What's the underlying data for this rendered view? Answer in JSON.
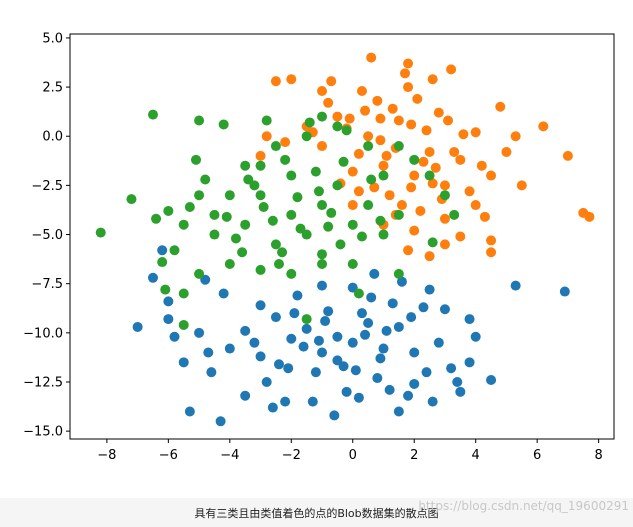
{
  "caption": "具有三类且由类值着色的点的Blob数据集的散点图",
  "watermark": "https://blog.csdn.net/qq_19600291",
  "chart_data": {
    "type": "scatter",
    "title": "",
    "xlabel": "",
    "ylabel": "",
    "xlim": [
      -9.2,
      8.5
    ],
    "ylim": [
      -15.4,
      5.2
    ],
    "xticks": [
      -8,
      -6,
      -4,
      -2,
      0,
      2,
      4,
      6,
      8
    ],
    "yticks": [
      5.0,
      2.5,
      0.0,
      -2.5,
      -5.0,
      -7.5,
      -10.0,
      -12.5,
      -15.0
    ],
    "xtick_labels": [
      "−8",
      "−6",
      "−4",
      "−2",
      "0",
      "2",
      "4",
      "6",
      "8"
    ],
    "ytick_labels": [
      "5.0",
      "2.5",
      "0.0",
      "−2.5",
      "−5.0",
      "−7.5",
      "−10.0",
      "−12.5",
      "−15.0"
    ],
    "grid": false,
    "series": [
      {
        "color": "#1f77b4",
        "points": [
          [
            -1.5,
            -9.8
          ],
          [
            -0.5,
            -10.2
          ],
          [
            0.5,
            -9.5
          ],
          [
            -1.0,
            -11.0
          ],
          [
            0.0,
            -10.5
          ],
          [
            1.0,
            -10.8
          ],
          [
            -2.0,
            -10.3
          ],
          [
            -0.8,
            -8.9
          ],
          [
            0.3,
            -9.0
          ],
          [
            1.5,
            -9.7
          ],
          [
            -2.5,
            -9.2
          ],
          [
            -1.2,
            -12.0
          ],
          [
            0.8,
            -12.3
          ],
          [
            -3.0,
            -11.2
          ],
          [
            2.0,
            -11.0
          ],
          [
            -0.2,
            -13.0
          ],
          [
            1.2,
            -12.9
          ],
          [
            -2.8,
            -12.5
          ],
          [
            2.8,
            -10.5
          ],
          [
            -3.5,
            -9.9
          ],
          [
            3.2,
            -11.8
          ],
          [
            -4.0,
            -10.8
          ],
          [
            0.6,
            -8.2
          ],
          [
            -1.8,
            -8.1
          ],
          [
            2.3,
            -8.7
          ],
          [
            -2.2,
            -13.5
          ],
          [
            1.8,
            -13.2
          ],
          [
            -0.6,
            -14.2
          ],
          [
            3.5,
            -13.0
          ],
          [
            -4.6,
            -12.0
          ],
          [
            4.0,
            -10.2
          ],
          [
            -5.0,
            -10.0
          ],
          [
            -5.5,
            -11.5
          ],
          [
            -6.0,
            -9.3
          ],
          [
            -6.5,
            -7.2
          ],
          [
            -6.2,
            -5.8
          ],
          [
            -4.2,
            -8.0
          ],
          [
            -3.0,
            -8.6
          ],
          [
            -1.0,
            -7.6
          ],
          [
            0.7,
            -7.0
          ],
          [
            1.6,
            -7.4
          ],
          [
            2.5,
            -7.8
          ],
          [
            3.0,
            -8.8
          ],
          [
            3.4,
            -12.5
          ],
          [
            4.5,
            -12.4
          ],
          [
            -7.0,
            -9.7
          ],
          [
            -5.3,
            -14.0
          ],
          [
            -4.3,
            -14.5
          ],
          [
            -3.5,
            -13.2
          ],
          [
            -2.6,
            -13.8
          ],
          [
            -1.3,
            -13.5
          ],
          [
            0.2,
            -13.3
          ],
          [
            1.5,
            -14.0
          ],
          [
            2.6,
            -13.5
          ],
          [
            3.8,
            -11.5
          ],
          [
            5.3,
            -7.6
          ],
          [
            6.9,
            -7.9
          ],
          [
            -0.3,
            -11.7
          ],
          [
            0.9,
            -11.3
          ],
          [
            -1.6,
            -10.7
          ],
          [
            -2.4,
            -11.6
          ],
          [
            1.9,
            -9.2
          ],
          [
            -3.2,
            -10.5
          ],
          [
            2.4,
            -12.0
          ],
          [
            -0.9,
            -9.4
          ],
          [
            0.1,
            -11.9
          ],
          [
            1.3,
            -8.5
          ],
          [
            -1.9,
            -9.0
          ],
          [
            -4.7,
            -11.0
          ],
          [
            3.8,
            -9.3
          ],
          [
            -5.8,
            -10.2
          ],
          [
            -6.0,
            -8.4
          ],
          [
            -4.8,
            -7.3
          ],
          [
            0.0,
            -7.7
          ],
          [
            -0.5,
            -11.4
          ],
          [
            0.4,
            -10.1
          ],
          [
            1.1,
            -9.9
          ],
          [
            -1.1,
            -10.4
          ],
          [
            -2.1,
            -11.8
          ],
          [
            2.0,
            -12.6
          ]
        ]
      },
      {
        "color": "#ff7f0e",
        "points": [
          [
            1.0,
            -1.5
          ],
          [
            2.0,
            -2.0
          ],
          [
            0.5,
            0.0
          ],
          [
            1.5,
            0.8
          ],
          [
            2.5,
            -0.8
          ],
          [
            3.0,
            -2.5
          ],
          [
            0.0,
            -1.8
          ],
          [
            1.2,
            -3.0
          ],
          [
            2.2,
            -3.8
          ],
          [
            3.5,
            -1.2
          ],
          [
            4.0,
            0.2
          ],
          [
            0.8,
            1.8
          ],
          [
            1.8,
            2.5
          ],
          [
            2.8,
            1.2
          ],
          [
            3.2,
            3.4
          ],
          [
            0.3,
            2.3
          ],
          [
            -0.5,
            1.0
          ],
          [
            -1.0,
            -0.5
          ],
          [
            -0.7,
            2.8
          ],
          [
            -1.3,
            0.2
          ],
          [
            0.6,
            4.0
          ],
          [
            1.7,
            3.2
          ],
          [
            2.6,
            2.9
          ],
          [
            1.8,
            3.7
          ],
          [
            -2.5,
            2.8
          ],
          [
            -2.0,
            2.9
          ],
          [
            -1.0,
            2.3
          ],
          [
            0.0,
            -3.5
          ],
          [
            1.0,
            -4.5
          ],
          [
            2.0,
            -4.8
          ],
          [
            3.0,
            -4.2
          ],
          [
            4.0,
            -3.5
          ],
          [
            4.5,
            -2.0
          ],
          [
            5.0,
            -0.8
          ],
          [
            5.3,
            0.0
          ],
          [
            6.2,
            0.5
          ],
          [
            7.0,
            -1.0
          ],
          [
            7.5,
            -3.9
          ],
          [
            7.7,
            -4.1
          ],
          [
            5.5,
            -2.5
          ],
          [
            4.8,
            1.5
          ],
          [
            4.5,
            -5.3
          ],
          [
            4.5,
            -5.9
          ],
          [
            3.5,
            -5.1
          ],
          [
            2.5,
            -6.1
          ],
          [
            1.8,
            -5.8
          ],
          [
            -1.5,
            0.5
          ],
          [
            -2.8,
            0.0
          ],
          [
            -3.0,
            -1.0
          ],
          [
            -2.2,
            -0.3
          ],
          [
            -0.2,
            0.4
          ],
          [
            0.9,
            0.9
          ],
          [
            1.4,
            -0.6
          ],
          [
            2.4,
            0.3
          ],
          [
            3.6,
            0.1
          ],
          [
            3.3,
            -0.8
          ],
          [
            2.7,
            -1.6
          ],
          [
            1.9,
            -2.6
          ],
          [
            1.6,
            -3.5
          ],
          [
            0.7,
            -2.6
          ],
          [
            0.2,
            -0.9
          ],
          [
            -0.4,
            -2.4
          ],
          [
            1.3,
            1.4
          ],
          [
            2.1,
            1.9
          ],
          [
            3.8,
            -2.8
          ],
          [
            4.3,
            -4.1
          ],
          [
            2.9,
            -3.2
          ],
          [
            0.4,
            1.3
          ],
          [
            -0.8,
            1.7
          ],
          [
            1.1,
            -1.0
          ],
          [
            2.3,
            -1.3
          ],
          [
            3.1,
            0.8
          ],
          [
            4.2,
            -1.5
          ],
          [
            3.0,
            -5.5
          ],
          [
            1.4,
            -4.0
          ],
          [
            0.2,
            -2.8
          ],
          [
            -0.1,
            0.9
          ],
          [
            0.9,
            -0.2
          ],
          [
            1.9,
            0.6
          ],
          [
            2.6,
            -2.4
          ]
        ]
      },
      {
        "color": "#2ca02c",
        "points": [
          [
            -1.0,
            -3.5
          ],
          [
            -2.0,
            -4.0
          ],
          [
            -0.5,
            -2.5
          ],
          [
            -3.0,
            -3.0
          ],
          [
            -1.5,
            -5.0
          ],
          [
            0.0,
            -4.5
          ],
          [
            -2.5,
            -5.5
          ],
          [
            -3.5,
            -4.5
          ],
          [
            0.5,
            -3.5
          ],
          [
            -1.0,
            -6.0
          ],
          [
            -2.0,
            -2.0
          ],
          [
            -3.0,
            -1.5
          ],
          [
            -4.0,
            -3.0
          ],
          [
            -4.5,
            -4.0
          ],
          [
            -5.0,
            -3.0
          ],
          [
            -5.5,
            -4.5
          ],
          [
            -6.4,
            -4.2
          ],
          [
            -6.5,
            1.1
          ],
          [
            -5.0,
            0.8
          ],
          [
            -4.2,
            0.6
          ],
          [
            -5.1,
            -1.2
          ],
          [
            -6.0,
            -3.8
          ],
          [
            -7.2,
            -3.2
          ],
          [
            -8.2,
            -4.9
          ],
          [
            -5.8,
            -5.8
          ],
          [
            -6.2,
            -6.4
          ],
          [
            -5.0,
            -7.0
          ],
          [
            -6.1,
            -7.8
          ],
          [
            -5.5,
            -8.0
          ],
          [
            -5.5,
            -9.6
          ],
          [
            -4.0,
            -6.5
          ],
          [
            -3.0,
            -6.8
          ],
          [
            -2.0,
            -7.0
          ],
          [
            -1.0,
            -6.5
          ],
          [
            0.0,
            -6.5
          ],
          [
            1.0,
            -5.0
          ],
          [
            1.5,
            -4.0
          ],
          [
            1.0,
            -2.0
          ],
          [
            0.5,
            -0.5
          ],
          [
            -0.5,
            0.5
          ],
          [
            -1.0,
            1.0
          ],
          [
            -1.5,
            0.0
          ],
          [
            -2.5,
            -0.5
          ],
          [
            -3.5,
            -1.5
          ],
          [
            -2.8,
            0.8
          ],
          [
            -1.4,
            0.7
          ],
          [
            -0.2,
            0.3
          ],
          [
            1.5,
            -0.5
          ],
          [
            2.0,
            -1.2
          ],
          [
            2.5,
            -2.0
          ],
          [
            3.0,
            -3.0
          ],
          [
            3.3,
            -4.0
          ],
          [
            2.6,
            -5.4
          ],
          [
            1.5,
            -7.0
          ],
          [
            0.2,
            -8.0
          ],
          [
            -1.5,
            -9.3
          ],
          [
            -4.5,
            -5.0
          ],
          [
            -3.2,
            -2.5
          ],
          [
            -2.2,
            -1.2
          ],
          [
            -1.2,
            -1.8
          ],
          [
            -0.3,
            -1.3
          ],
          [
            0.6,
            -2.2
          ],
          [
            -0.8,
            -4.6
          ],
          [
            -1.8,
            -3.1
          ],
          [
            -2.6,
            -4.3
          ],
          [
            -3.8,
            -5.2
          ],
          [
            -4.8,
            -2.2
          ],
          [
            -5.3,
            -3.6
          ],
          [
            -2.3,
            -5.9
          ],
          [
            -1.7,
            -4.7
          ],
          [
            -0.4,
            -5.5
          ],
          [
            0.9,
            -4.3
          ],
          [
            -3.4,
            -2.2
          ],
          [
            -2.9,
            -3.6
          ],
          [
            -1.1,
            -2.8
          ],
          [
            -0.7,
            -3.9
          ],
          [
            -2.4,
            -6.5
          ],
          [
            -4.1,
            -4.1
          ],
          [
            0.3,
            -5.1
          ],
          [
            -3.6,
            -5.9
          ]
        ]
      }
    ]
  }
}
